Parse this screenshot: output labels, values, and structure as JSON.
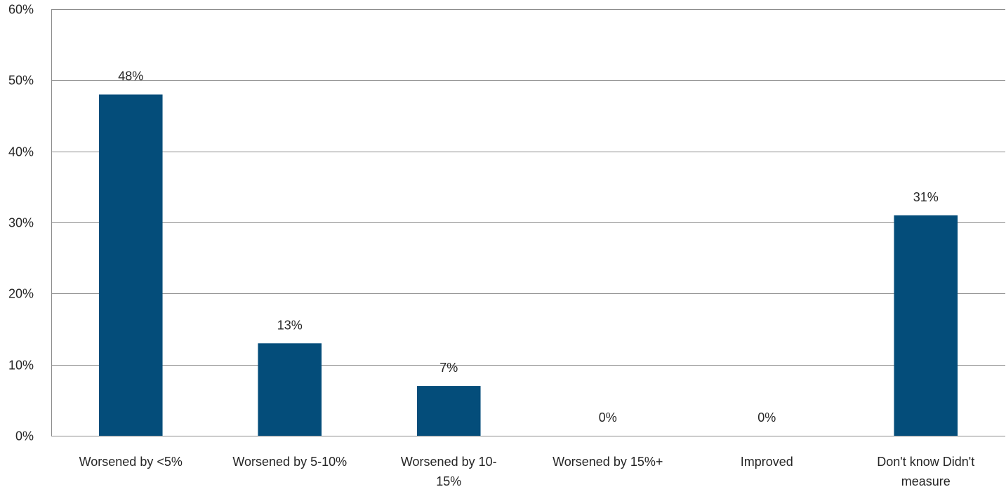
{
  "chart_data": {
    "type": "bar",
    "title": "",
    "xlabel": "",
    "ylabel": "",
    "ylim": [
      0,
      60
    ],
    "y_ticks": [
      0,
      10,
      20,
      30,
      40,
      50,
      60
    ],
    "y_tick_labels": [
      "0%",
      "10%",
      "20%",
      "30%",
      "40%",
      "50%",
      "60%"
    ],
    "grid": true,
    "legend": "none",
    "bar_color": "#044d7a",
    "categories": [
      [
        "Worsened by <5%"
      ],
      [
        "Worsened by 5-10%"
      ],
      [
        "Worsened by 10-",
        "15%"
      ],
      [
        "Worsened by 15%+"
      ],
      [
        "Improved"
      ],
      [
        "Don't know  Didn't",
        "measure"
      ]
    ],
    "values": [
      48,
      13,
      7,
      0,
      0,
      31
    ],
    "data_labels": [
      "48%",
      "13%",
      "7%",
      "0%",
      "0%",
      "31%"
    ]
  }
}
